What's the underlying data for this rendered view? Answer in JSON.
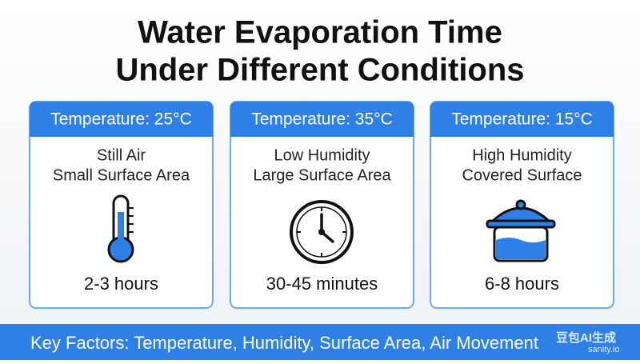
{
  "title": {
    "lines": [
      "Water Evaporation Time",
      "Under Different Conditions"
    ]
  },
  "cards": [
    {
      "header": "Temperature: 25°C",
      "conditions": [
        "Still Air",
        "Small Surface Area"
      ],
      "result": "2-3 hours"
    },
    {
      "header": "Temperature: 35°C",
      "conditions": [
        "Low Humidity",
        "Large Surface Area"
      ],
      "result": "30-45 minutes"
    },
    {
      "header": "Temperature: 15°C",
      "conditions": [
        "High Humidity",
        "Covered Surface"
      ],
      "result": "6-8 hours"
    }
  ],
  "footer": {
    "text": "Key Factors: Temperature, Humidity, Surface Area, Air Movement"
  },
  "watermark": {
    "brand": "豆包AI生成",
    "site": "sanity.io"
  }
}
